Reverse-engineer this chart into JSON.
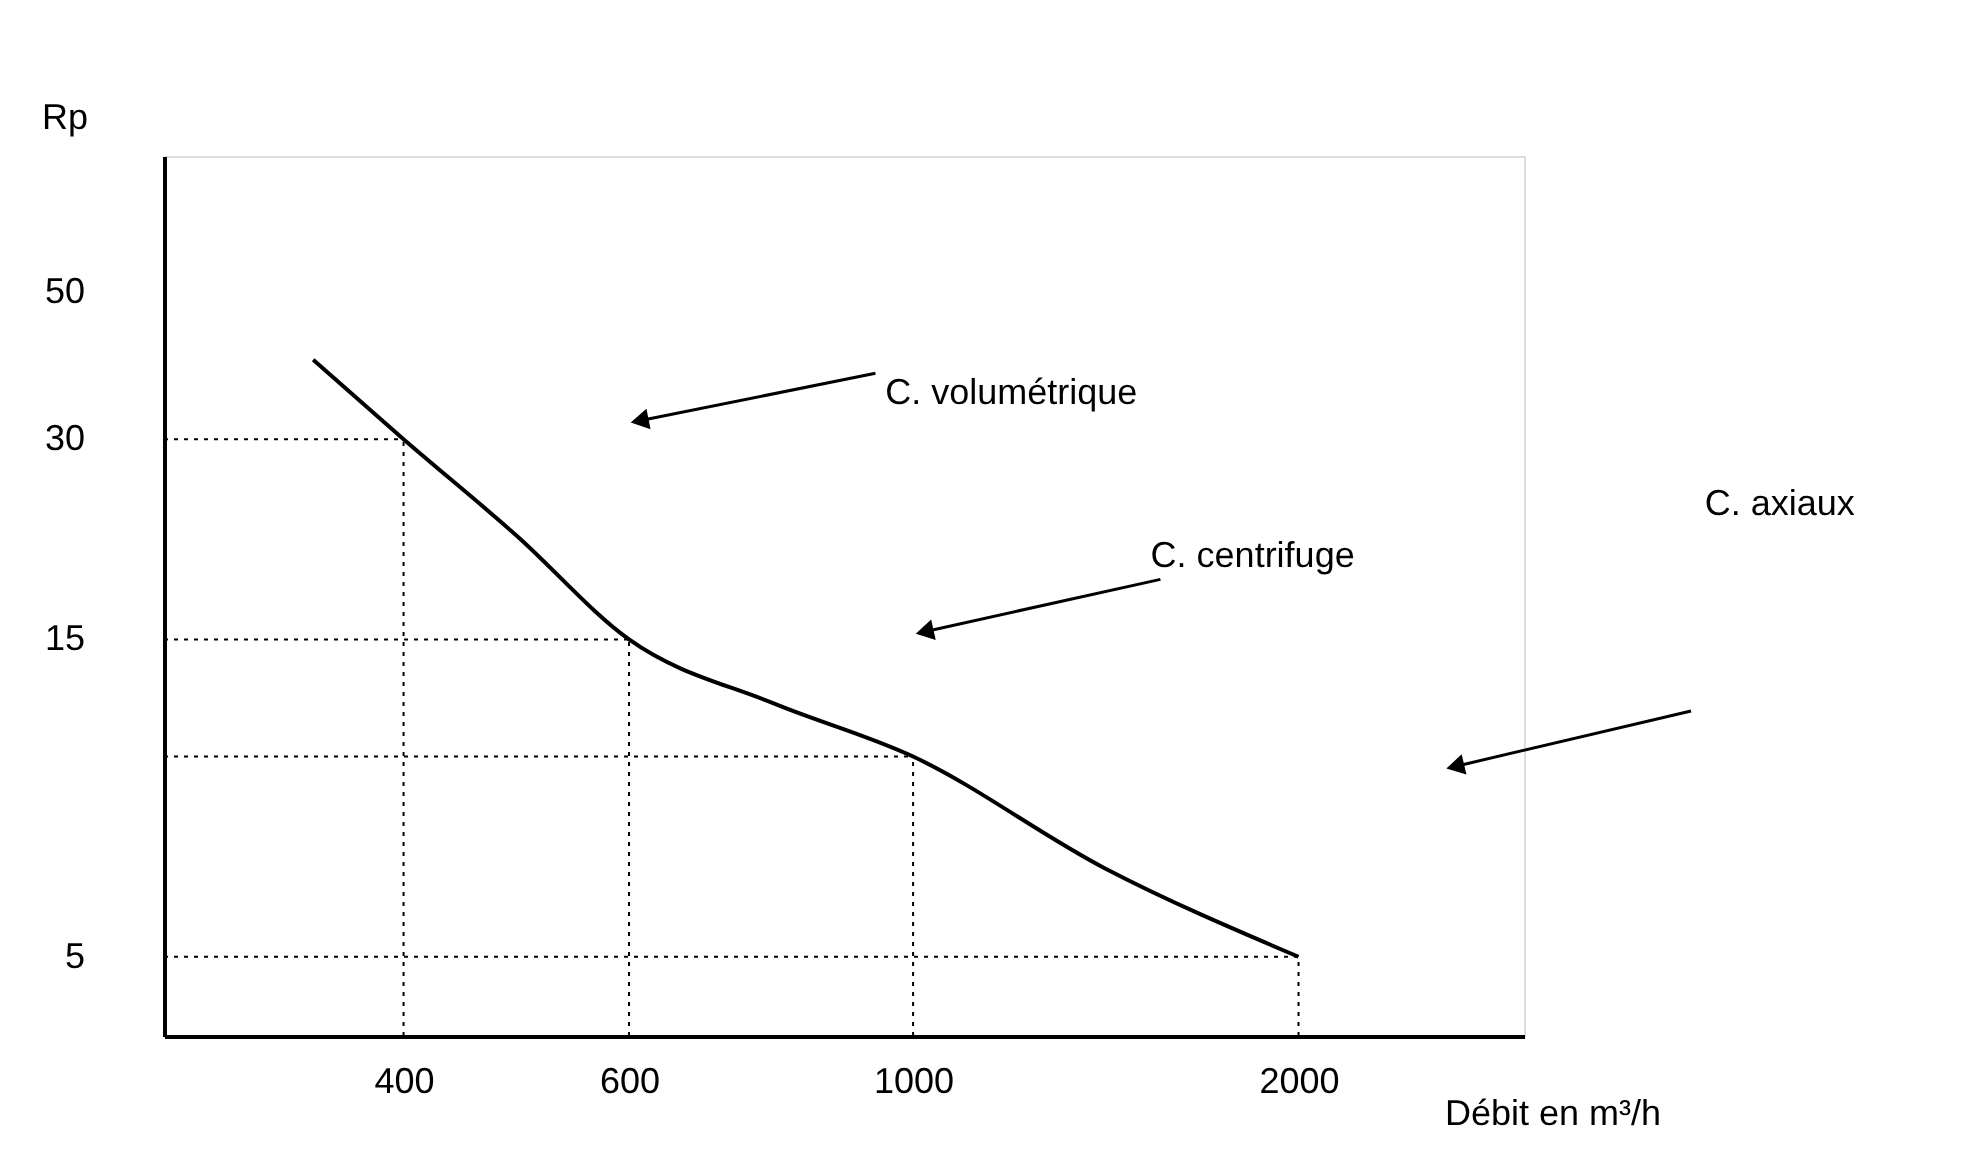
{
  "chart_data": {
    "type": "line",
    "xlabel": "Débit en m³/h",
    "ylabel": "Rp",
    "x": [
      340,
      400,
      490,
      600,
      780,
      1000,
      1410,
      2000
    ],
    "series": [
      {
        "color": "#000000",
        "values": [
          39.5,
          30,
          21.5,
          15,
          12,
          10,
          6.8,
          5
        ]
      }
    ],
    "xlim": [
      260,
      3000
    ],
    "xticks": [
      400,
      600,
      1000,
      2000
    ],
    "ylim": [
      3.8,
      80
    ],
    "yticks": [
      5,
      15,
      30,
      50
    ],
    "log": "xy",
    "grid": false,
    "marker": "none",
    "line_style": "solid",
    "ref_lines": [
      {
        "axis": "y",
        "value": 30,
        "line_style": "dotted"
      },
      {
        "axis": "y",
        "value": 15,
        "line_style": "dotted"
      },
      {
        "axis": "y",
        "value": 10,
        "line_style": "dotted"
      },
      {
        "axis": "y",
        "value": 5,
        "line_style": "dotted"
      },
      {
        "axis": "x",
        "value": 400,
        "line_style": "dotted"
      },
      {
        "axis": "x",
        "value": 600,
        "line_style": "dotted"
      },
      {
        "axis": "x",
        "value": 1000,
        "line_style": "dotted"
      },
      {
        "axis": "x",
        "value": 2000,
        "line_style": "dotted"
      }
    ],
    "annotations": [
      "C. volumétrique",
      "C. centrifuge",
      "C. axiaux"
    ]
  }
}
